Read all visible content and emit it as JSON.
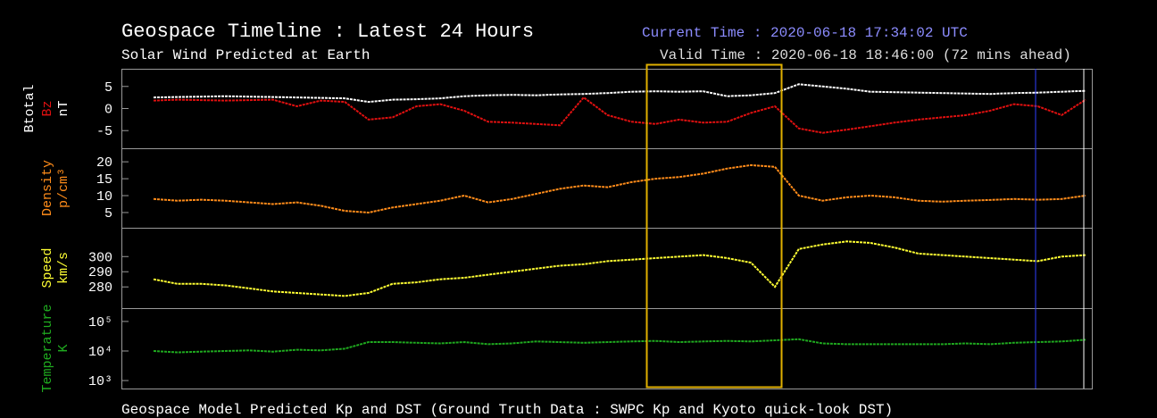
{
  "header": {
    "title": "Geospace Timeline : Latest 24 Hours",
    "subtitle": "Solar Wind Predicted at Earth",
    "current_time": "Current Time : 2020-06-18 17:34:02 UTC",
    "valid_time": "Valid Time : 2020-06-18 18:46:00 (72 mins ahead)",
    "footer": "Geospace Model Predicted Kp and DST (Ground Truth Data : SWPC Kp and Kyoto quick-look DST)"
  },
  "chart_data": [
    {
      "type": "line",
      "ylabel": "nT",
      "ylim": [
        -9,
        9
      ],
      "yticks": [
        -5,
        0,
        5
      ],
      "series": [
        {
          "name": "Btotal",
          "color": "#ffffff",
          "values": [
            2.5,
            2.6,
            2.7,
            2.8,
            2.7,
            2.6,
            2.5,
            2.4,
            2.3,
            1.5,
            2.0,
            2.1,
            2.3,
            2.8,
            3.0,
            3.1,
            3.0,
            3.2,
            3.3,
            3.5,
            3.8,
            3.9,
            3.8,
            3.9,
            2.8,
            3.0,
            3.5,
            5.5,
            5.0,
            4.5,
            3.8,
            3.7,
            3.6,
            3.5,
            3.4,
            3.3,
            3.5,
            3.6,
            3.8,
            4.0
          ]
        },
        {
          "name": "Bz",
          "color": "#e01010",
          "values": [
            1.8,
            2.0,
            1.9,
            1.8,
            1.9,
            2.0,
            0.5,
            1.8,
            1.5,
            -2.5,
            -2.0,
            0.5,
            1.0,
            -0.5,
            -3.0,
            -3.2,
            -3.5,
            -3.8,
            2.5,
            -1.5,
            -3.0,
            -3.5,
            -2.5,
            -3.2,
            -3.0,
            -1.0,
            0.5,
            -4.5,
            -5.5,
            -4.8,
            -4.0,
            -3.2,
            -2.5,
            -2.0,
            -1.5,
            -0.5,
            1.0,
            0.5,
            -1.5,
            2.0
          ]
        }
      ]
    },
    {
      "type": "line",
      "ylabel": "p/cm³",
      "ylim": [
        0.5,
        24
      ],
      "yticks": [
        5,
        10,
        15,
        20
      ],
      "series": [
        {
          "name": "Density",
          "color": "#ff8c1a",
          "values": [
            9,
            8.5,
            8.8,
            8.5,
            8,
            7.5,
            8,
            7,
            5.5,
            5,
            6.5,
            7.5,
            8.5,
            10,
            8,
            9,
            10.5,
            12,
            13,
            12.5,
            14,
            15,
            15.5,
            16.5,
            18,
            19,
            18.5,
            10,
            8.5,
            9.5,
            10,
            9.5,
            8.5,
            8.2,
            8.5,
            8.7,
            9,
            8.8,
            9,
            10
          ]
        }
      ]
    },
    {
      "type": "line",
      "ylabel": "km/s",
      "ylim": [
        266,
        319
      ],
      "yticks": [
        280,
        290,
        300
      ],
      "series": [
        {
          "name": "Speed",
          "color": "#ffff33",
          "values": [
            285,
            282,
            282,
            281,
            279,
            277,
            276,
            275,
            274,
            276,
            282,
            283,
            285,
            286,
            288,
            290,
            292,
            294,
            295,
            297,
            298,
            299,
            300,
            301,
            299,
            296,
            280,
            305,
            308,
            310,
            309,
            306,
            302,
            301,
            300,
            299,
            298,
            297,
            300,
            301
          ]
        }
      ]
    },
    {
      "type": "line",
      "ylabel": "K",
      "log_scale": true,
      "ylim": [
        537,
        282000
      ],
      "yticks": [
        {
          "value": 1000,
          "label": "10³"
        },
        {
          "value": 10000,
          "label": "10⁴"
        },
        {
          "value": 100000,
          "label": "10⁵"
        }
      ],
      "series": [
        {
          "name": "Temperature",
          "color": "#1faa1f",
          "values": [
            10000,
            9000,
            9500,
            10000,
            10500,
            9500,
            11000,
            10500,
            12000,
            20000,
            20000,
            19000,
            18000,
            20000,
            17000,
            18000,
            21000,
            20000,
            19000,
            20000,
            21000,
            22000,
            20000,
            21000,
            22000,
            21000,
            23000,
            25000,
            18000,
            17000,
            17000,
            17000,
            17000,
            17000,
            18000,
            17000,
            19000,
            20000,
            21000,
            24000
          ]
        }
      ]
    }
  ]
}
